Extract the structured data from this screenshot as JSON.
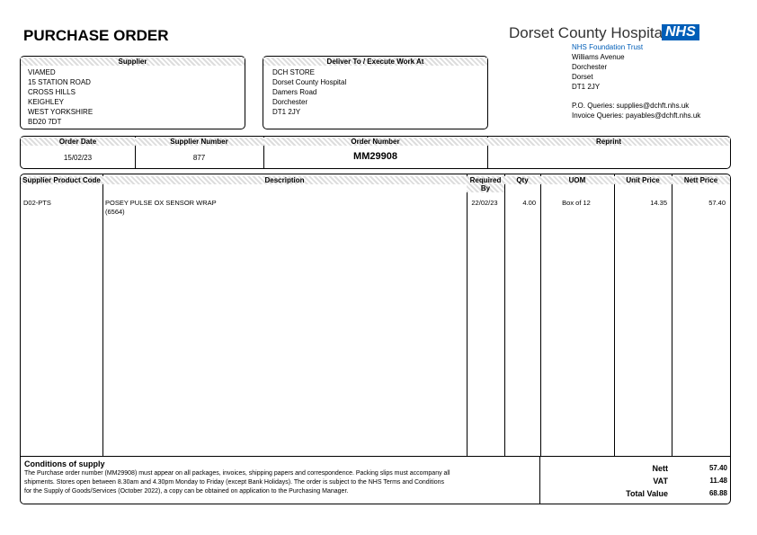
{
  "header": {
    "title": "PURCHASE ORDER",
    "org": "Dorset County Hospital",
    "nhs": "NHS",
    "trust": "NHS Foundation Trust",
    "address": [
      "Williams Avenue",
      "Dorchester",
      "Dorset",
      "DT1 2JY"
    ],
    "queries": [
      "P.O. Queries: supplies@dchft.nhs.uk",
      "Invoice Queries: payables@dchft.nhs.uk"
    ]
  },
  "supplier": {
    "label": "Supplier",
    "lines": [
      "VIAMED",
      "15 STATION ROAD",
      "CROSS HILLS",
      "KEIGHLEY",
      "WEST YORKSHIRE",
      "BD20 7DT"
    ]
  },
  "deliver": {
    "label": "Deliver To / Execute Work At",
    "lines": [
      "DCH STORE",
      "Dorset County Hospital",
      "Damers Road",
      "Dorchester",
      "DT1 2JY"
    ]
  },
  "info": {
    "order_date_label": "Order Date",
    "order_date": "15/02/23",
    "supplier_number_label": "Supplier Number",
    "supplier_number": "877",
    "order_number_label": "Order Number",
    "order_number": "MM29908",
    "reprint_label": "Reprint"
  },
  "table": {
    "headers": [
      "Supplier Product Code",
      "Description",
      "Required By",
      "Qty",
      "UOM",
      "Unit Price",
      "Nett Price"
    ],
    "rows": [
      {
        "code": "D02-PTS",
        "description": [
          "POSEY PULSE OX SENSOR WRAP",
          "(6564)"
        ],
        "required_by": "22/02/23",
        "qty": "4.00",
        "uom": "Box of 12",
        "unit_price": "14.35",
        "nett_price": "57.40"
      }
    ]
  },
  "conditions": {
    "title": "Conditions of supply",
    "lines": [
      "The Purchase order number (MM29908) must appear on all packages, invoices, shipping papers and correspondence. Packing slips must accompany all",
      "shipments. Stores open between 8.30am and 4.30pm Monday to Friday (except Bank Holidays). The order is subject to the NHS Terms and Conditions",
      "for the Supply of Goods/Services (October 2022), a copy can be obtained on application to the Purchasing Manager."
    ]
  },
  "totals": {
    "nett_label": "Nett",
    "nett": "57.40",
    "vat_label": "VAT",
    "vat": "11.48",
    "total_label": "Total Value",
    "total": "68.88"
  }
}
